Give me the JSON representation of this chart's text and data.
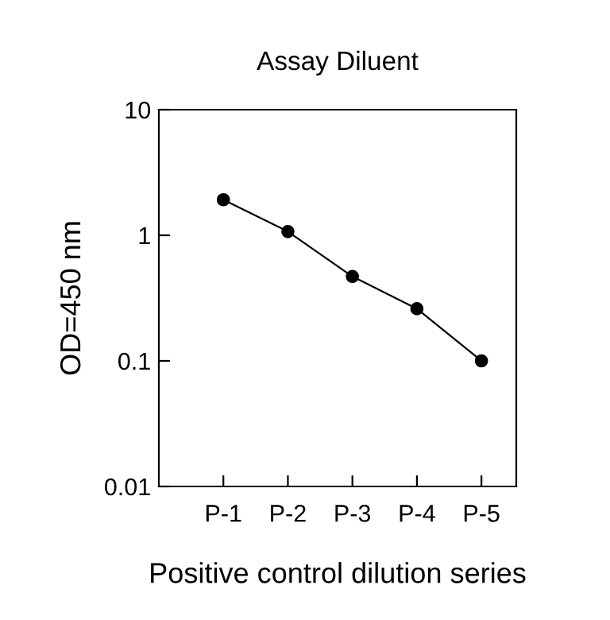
{
  "chart_data": {
    "type": "line",
    "title": "Assay Diluent",
    "xlabel": "Positive control dilution series",
    "ylabel": "OD=450 nm",
    "categories": [
      "P-1",
      "P-2",
      "P-3",
      "P-4",
      "P-5"
    ],
    "series": [
      {
        "color": "#000000",
        "values": [
          1.92,
          1.07,
          0.47,
          0.26,
          0.1
        ]
      }
    ],
    "log": true,
    "ylim": [
      0.01,
      10
    ],
    "yticks": [
      0.01,
      0.1,
      1,
      10
    ],
    "marker": "circle",
    "line_style": "solid",
    "grid": false,
    "legend": false
  }
}
